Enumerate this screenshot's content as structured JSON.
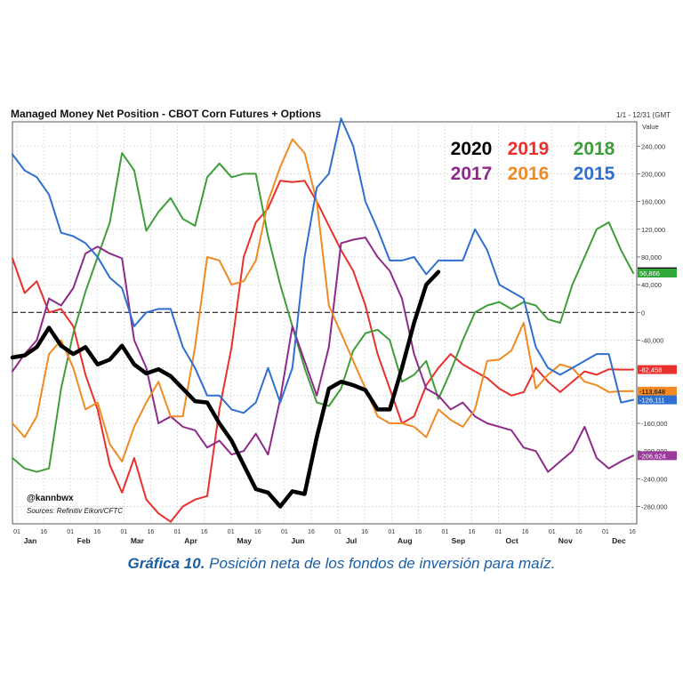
{
  "header": {
    "title": "Managed Money Net Position - CBOT Corn Futures + Options",
    "date_range": "1/1 - 12/31 (GMT"
  },
  "caption": {
    "lead": "Gráfica 10.",
    "text": "Posición neta de los fondos de inversión para maíz."
  },
  "chart_data": {
    "type": "line",
    "title": "Managed Money Net Position - CBOT Corn Futures + Options",
    "ylabel": "Value",
    "ylim": [
      -305000,
      275000
    ],
    "xlim": [
      1,
      52
    ],
    "y_ticks": [
      240000,
      200000,
      160000,
      120000,
      80000,
      40000,
      0,
      -40000,
      -80000,
      -120000,
      -160000,
      -200000,
      -240000,
      -280000
    ],
    "y_tick_labels": [
      "240,000",
      "200,000",
      "160,000",
      "120,000",
      "80,000",
      "40,000",
      "0",
      "-40,000",
      "-80,000",
      "-120,000",
      "-160,000",
      "-200,000",
      "-240,000",
      "-280,000"
    ],
    "x_day_ticks": [
      "01",
      "16",
      "01",
      "16",
      "01",
      "16",
      "01",
      "16",
      "01",
      "16",
      "01",
      "16",
      "01",
      "16",
      "01",
      "16",
      "01",
      "16",
      "01",
      "16",
      "01",
      "16",
      "01",
      "16"
    ],
    "months": [
      "Jan",
      "Feb",
      "Mar",
      "Apr",
      "May",
      "Jun",
      "Jul",
      "Aug",
      "Sep",
      "Oct",
      "Nov",
      "Dec"
    ],
    "grid": true,
    "legend_placement": "top-right",
    "annotations": [
      "@kannbwx",
      "Sources: Refinitiv Eikon/CFTC"
    ],
    "series": [
      {
        "name": "2020",
        "color": "#000000",
        "width": 4.5,
        "x": [
          1,
          2,
          3,
          4,
          5,
          6,
          7,
          8,
          9,
          10,
          11,
          12,
          13,
          14,
          15,
          16,
          17,
          18,
          19,
          20,
          21,
          22,
          23,
          24,
          25,
          26,
          27,
          28,
          29,
          30,
          31,
          32,
          33,
          34,
          35,
          36
        ],
        "y": [
          -65000,
          -62000,
          -50000,
          -22000,
          -48000,
          -60000,
          -50000,
          -75000,
          -68000,
          -48000,
          -75000,
          -88000,
          -82000,
          -92000,
          -110000,
          -128000,
          -130000,
          -160000,
          -185000,
          -220000,
          -255000,
          -260000,
          -280000,
          -258000,
          -262000,
          -180000,
          -110000,
          -100000,
          -105000,
          -112000,
          -140000,
          -140000,
          -80000,
          -15000,
          40000,
          58556
        ]
      },
      {
        "name": "2019",
        "color": "#e8312d",
        "width": 2,
        "x": [
          1,
          2,
          3,
          4,
          5,
          6,
          7,
          8,
          9,
          10,
          11,
          12,
          13,
          14,
          15,
          16,
          17,
          18,
          19,
          20,
          21,
          22,
          23,
          24,
          25,
          26,
          27,
          28,
          29,
          30,
          31,
          32,
          33,
          34,
          35,
          36,
          37,
          38,
          39,
          40,
          41,
          42,
          43,
          44,
          45,
          46,
          47,
          48,
          49,
          50,
          51,
          52
        ],
        "y": [
          78000,
          28000,
          45000,
          0,
          5000,
          -20000,
          -90000,
          -140000,
          -220000,
          -260000,
          -210000,
          -270000,
          -290000,
          -302000,
          -280000,
          -270000,
          -265000,
          -140000,
          -50000,
          80000,
          130000,
          150000,
          190000,
          188000,
          190000,
          160000,
          125000,
          90000,
          60000,
          10000,
          -60000,
          -110000,
          -160000,
          -150000,
          -105000,
          -80000,
          -60000,
          -75000,
          -85000,
          -95000,
          -110000,
          -120000,
          -115000,
          -80000,
          -100000,
          -115000,
          -100000,
          -85000,
          -90000,
          -82000,
          -82458,
          -82458
        ]
      },
      {
        "name": "2018",
        "color": "#3f9e3a",
        "width": 2,
        "x": [
          1,
          2,
          3,
          4,
          5,
          6,
          7,
          8,
          9,
          10,
          11,
          12,
          13,
          14,
          15,
          16,
          17,
          18,
          19,
          20,
          21,
          22,
          23,
          24,
          25,
          26,
          27,
          28,
          29,
          30,
          31,
          32,
          33,
          34,
          35,
          36,
          37,
          38,
          39,
          40,
          41,
          42,
          43,
          44,
          45,
          46,
          47,
          48,
          49,
          50,
          51,
          52
        ],
        "y": [
          -210000,
          -225000,
          -230000,
          -225000,
          -110000,
          -30000,
          30000,
          80000,
          130000,
          230000,
          205000,
          118000,
          145000,
          165000,
          135000,
          125000,
          195000,
          215000,
          195000,
          200000,
          200000,
          110000,
          40000,
          -20000,
          -80000,
          -130000,
          -135000,
          -110000,
          -55000,
          -30000,
          -25000,
          -40000,
          -100000,
          -90000,
          -70000,
          -125000,
          -85000,
          -40000,
          0,
          10000,
          15000,
          5000,
          15000,
          10000,
          -10000,
          -15000,
          40000,
          80000,
          120000,
          130000,
          90000,
          56866
        ]
      },
      {
        "name": "2017",
        "color": "#8e2a8a",
        "width": 2,
        "x": [
          1,
          2,
          3,
          4,
          5,
          6,
          7,
          8,
          9,
          10,
          11,
          12,
          13,
          14,
          15,
          16,
          17,
          18,
          19,
          20,
          21,
          22,
          23,
          24,
          25,
          26,
          27,
          28,
          29,
          30,
          31,
          32,
          33,
          34,
          35,
          36,
          37,
          38,
          39,
          40,
          41,
          42,
          43,
          44,
          45,
          46,
          47,
          48,
          49,
          50,
          51,
          52
        ],
        "y": [
          -85000,
          -60000,
          -40000,
          20000,
          10000,
          35000,
          85000,
          95000,
          85000,
          78000,
          -40000,
          -80000,
          -160000,
          -150000,
          -165000,
          -170000,
          -195000,
          -185000,
          -205000,
          -200000,
          -175000,
          -205000,
          -125000,
          -20000,
          -70000,
          -120000,
          -50000,
          100000,
          105000,
          108000,
          80000,
          60000,
          20000,
          -60000,
          -110000,
          -120000,
          -140000,
          -130000,
          -150000,
          -160000,
          -165000,
          -170000,
          -195000,
          -200000,
          -230000,
          -215000,
          -200000,
          -165000,
          -210000,
          -225000,
          -215000,
          -206624
        ]
      },
      {
        "name": "2016",
        "color": "#f08a22",
        "width": 2,
        "x": [
          1,
          2,
          3,
          4,
          5,
          6,
          7,
          8,
          9,
          10,
          11,
          12,
          13,
          14,
          15,
          16,
          17,
          18,
          19,
          20,
          21,
          22,
          23,
          24,
          25,
          26,
          27,
          28,
          29,
          30,
          31,
          32,
          33,
          34,
          35,
          36,
          37,
          38,
          39,
          40,
          41,
          42,
          43,
          44,
          45,
          46,
          47,
          48,
          49,
          50,
          51,
          52
        ],
        "y": [
          -160000,
          -180000,
          -150000,
          -60000,
          -40000,
          -80000,
          -140000,
          -130000,
          -190000,
          -215000,
          -165000,
          -130000,
          -100000,
          -150000,
          -150000,
          -50000,
          80000,
          75000,
          40000,
          45000,
          75000,
          160000,
          210000,
          250000,
          230000,
          160000,
          10000,
          -30000,
          -70000,
          -110000,
          -150000,
          -160000,
          -160000,
          -165000,
          -180000,
          -140000,
          -155000,
          -165000,
          -140000,
          -70000,
          -68000,
          -55000,
          -15000,
          -110000,
          -90000,
          -75000,
          -80000,
          -100000,
          -105000,
          -115000,
          -113648,
          -113648
        ]
      },
      {
        "name": "2015",
        "color": "#2f6fd0",
        "width": 2,
        "x": [
          1,
          2,
          3,
          4,
          5,
          6,
          7,
          8,
          9,
          10,
          11,
          12,
          13,
          14,
          15,
          16,
          17,
          18,
          19,
          20,
          21,
          22,
          23,
          24,
          25,
          26,
          27,
          28,
          29,
          30,
          31,
          32,
          33,
          34,
          35,
          36,
          37,
          38,
          39,
          40,
          41,
          42,
          43,
          44,
          45,
          46,
          47,
          48,
          49,
          50,
          51,
          52
        ],
        "y": [
          228000,
          205000,
          195000,
          170000,
          115000,
          110000,
          100000,
          80000,
          50000,
          35000,
          -20000,
          0,
          5000,
          5000,
          -50000,
          -80000,
          -120000,
          -120000,
          -140000,
          -145000,
          -130000,
          -80000,
          -130000,
          -80000,
          80000,
          180000,
          200000,
          280000,
          240000,
          160000,
          120000,
          75000,
          75000,
          80000,
          55000,
          75000,
          75000,
          75000,
          120000,
          90000,
          40000,
          30000,
          20000,
          -50000,
          -80000,
          -90000,
          -80000,
          -70000,
          -60000,
          -60000,
          -130000,
          -126111
        ]
      }
    ],
    "end_labels": [
      {
        "series": "2020",
        "text": "58,556",
        "bg": "#000000",
        "fg": "#ffffff",
        "value": 58556
      },
      {
        "series": "2018",
        "text": "56,866",
        "bg": "#2fa83a",
        "fg": "#ffffff",
        "value": 56866
      },
      {
        "series": "2019",
        "text": "-82,458",
        "bg": "#e8312d",
        "fg": "#ffffff",
        "value": -82458
      },
      {
        "series": "2016",
        "text": "-113,648",
        "bg": "#f08a22",
        "fg": "#000000",
        "value": -113648
      },
      {
        "series": "2015",
        "text": "-126,111",
        "bg": "#2f6fd0",
        "fg": "#ffffff",
        "value": -126111
      },
      {
        "series": "2017",
        "text": "-206,624",
        "bg": "#9a3a9a",
        "fg": "#ffffff",
        "value": -206624
      }
    ]
  }
}
